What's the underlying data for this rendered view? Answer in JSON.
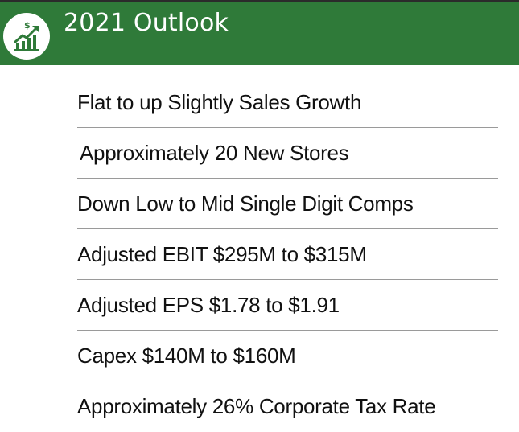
{
  "header": {
    "title": "2021 Outlook",
    "icon": "growth-chart-icon",
    "background_color": "#2f7a39"
  },
  "items": [
    {
      "label": "Flat to up Slightly Sales Growth"
    },
    {
      "label": "Approximately 20 New Stores"
    },
    {
      "label": "Down Low to Mid Single Digit Comps"
    },
    {
      "label": "Adjusted EBIT $295M to $315M"
    },
    {
      "label": "Adjusted EPS $1.78 to $1.91"
    },
    {
      "label": "Capex $140M to $160M"
    },
    {
      "label": "Approximately 26% Corporate Tax Rate"
    }
  ]
}
